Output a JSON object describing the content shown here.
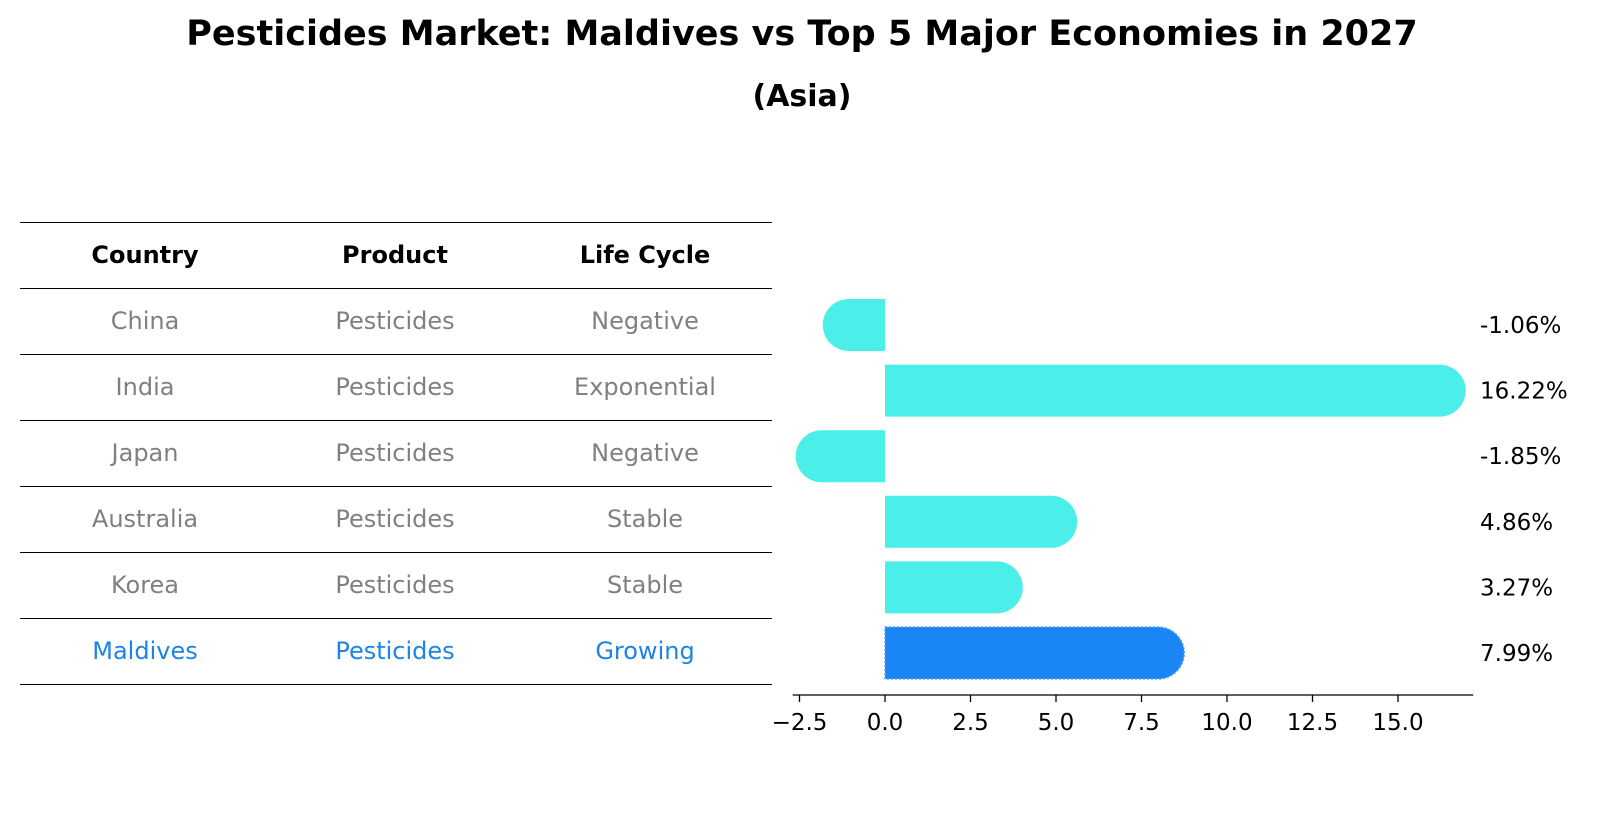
{
  "title": "Pesticides Market: Maldives vs Top 5 Major Economies in 2027",
  "subtitle": "(Asia)",
  "table": {
    "headers": [
      "Country",
      "Product",
      "Life Cycle"
    ],
    "rows": [
      {
        "country": "China",
        "product": "Pesticides",
        "life_cycle": "Negative",
        "highlight": false
      },
      {
        "country": "India",
        "product": "Pesticides",
        "life_cycle": "Exponential",
        "highlight": false
      },
      {
        "country": "Japan",
        "product": "Pesticides",
        "life_cycle": "Negative",
        "highlight": false
      },
      {
        "country": "Australia",
        "product": "Pesticides",
        "life_cycle": "Stable",
        "highlight": false
      },
      {
        "country": "Korea",
        "product": "Pesticides",
        "life_cycle": "Stable",
        "highlight": false
      },
      {
        "country": "Maldives",
        "product": "Pesticides",
        "life_cycle": "Growing",
        "highlight": true
      }
    ]
  },
  "chart_data": {
    "type": "bar",
    "orientation": "horizontal",
    "categories": [
      "China",
      "India",
      "Japan",
      "Australia",
      "Korea",
      "Maldives"
    ],
    "values": [
      -1.06,
      16.22,
      -1.85,
      4.86,
      3.27,
      7.99
    ],
    "value_labels": [
      "-1.06%",
      "16.22%",
      "-1.85%",
      "4.86%",
      "3.27%",
      "7.99%"
    ],
    "xlim": [
      -2.7,
      17.2
    ],
    "xticks": [
      -2.5,
      0.0,
      2.5,
      5.0,
      7.5,
      10.0,
      12.5,
      15.0
    ],
    "xtick_labels": [
      "−2.5",
      "0.0",
      "2.5",
      "5.0",
      "7.5",
      "10.0",
      "12.5",
      "15.0"
    ],
    "xlabel": "",
    "ylabel": "",
    "colors": {
      "default": "#4ceeea",
      "highlight": "#1a85f5"
    }
  }
}
